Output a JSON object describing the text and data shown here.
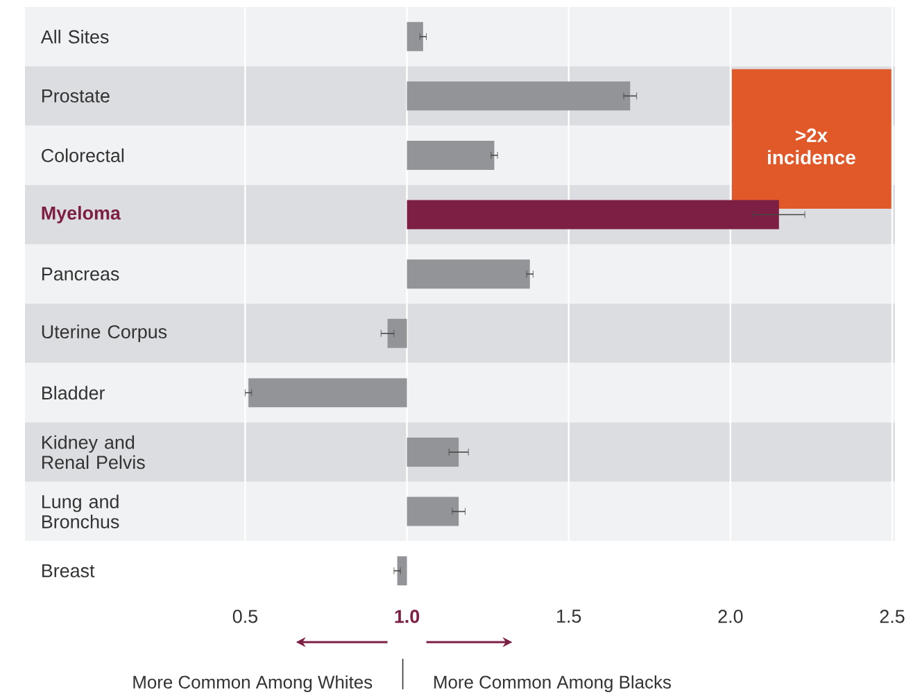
{
  "chart_data": {
    "type": "bar",
    "orientation": "horizontal",
    "categories": [
      "All Sites",
      "Prostate",
      "Colorectal",
      "Myeloma",
      "Pancreas",
      "Uterine Corpus",
      "Bladder",
      "Kidney and Renal Pelvis",
      "Lung and Bronchus",
      "Breast"
    ],
    "base": [
      1,
      1,
      1,
      1,
      1,
      1,
      1,
      1,
      1,
      1
    ],
    "values": [
      0.05,
      0.69,
      0.27,
      1.15,
      0.38,
      -0.06,
      -0.49,
      0.16,
      0.16,
      -0.03
    ],
    "errors": [
      0.01,
      0.02,
      0.01,
      0.08,
      0.01,
      0.02,
      0.01,
      0.03,
      0.02,
      0.01
    ],
    "color": "#939498",
    "colors": [
      "#939498",
      "#939498",
      "#939498",
      "#7d1f44",
      "#939498",
      "#939498",
      "#939498",
      "#939498",
      "#939498",
      "#939498"
    ],
    "xlim": [
      0.5,
      2.5
    ],
    "xticks": [
      0.5,
      {
        "value": 1,
        "label": "1.0"
      },
      1.5,
      {
        "value": 2,
        "label": "2.0"
      },
      2.5
    ],
    "grid": "x",
    "annotations": [
      ">2x incidence",
      "More Common Among Whites",
      "More Common Among Blacks"
    ]
  }
}
